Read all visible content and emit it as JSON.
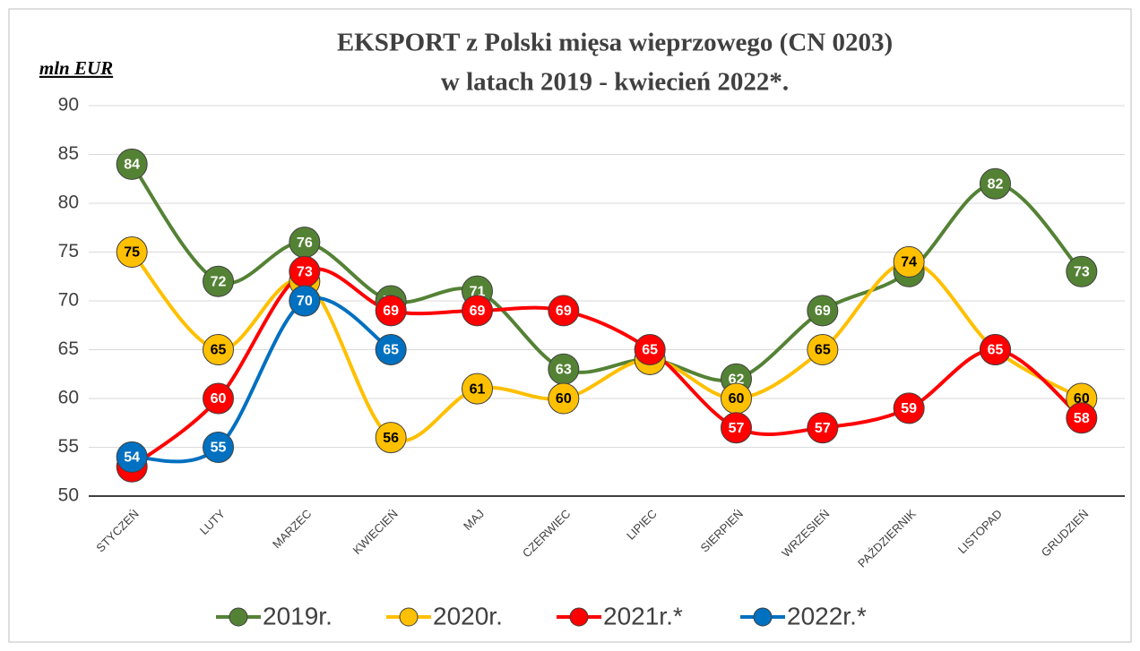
{
  "chart_data": {
    "type": "line",
    "title": "EKSPORT z Polski mięsa wieprzowego (CN 0203)",
    "subtitle": "w latach 2019 - kwiecień 2022*.",
    "y_label": "mln EUR",
    "categories": [
      "STYCZEŃ",
      "LUTY",
      "MARZEC",
      "KWIECIEŃ",
      "MAJ",
      "CZERWIEC",
      "LIPIEC",
      "SIERPIEŃ",
      "WRZESIEŃ",
      "PAŹDZIERNIK",
      "LISTOPAD",
      "GRUDZIEŃ"
    ],
    "series": [
      {
        "name": "2019r.",
        "color": "#548235",
        "label_color": "#ffffff",
        "values": [
          84,
          72,
          76,
          70,
          71,
          63,
          64,
          62,
          69,
          73,
          82,
          73
        ]
      },
      {
        "name": "2020r.",
        "color": "#ffc000",
        "label_color": "#000000",
        "values": [
          75,
          65,
          72,
          56,
          61,
          60,
          64,
          60,
          65,
          74,
          65,
          60
        ]
      },
      {
        "name": "2021r.*",
        "color": "#ff0000",
        "label_color": "#ffffff",
        "values": [
          53,
          60,
          73,
          69,
          69,
          69,
          65,
          57,
          57,
          59,
          65,
          58
        ]
      },
      {
        "name": "2022r.*",
        "color": "#0070c0",
        "label_color": "#ffffff",
        "values": [
          54,
          55,
          70,
          65,
          null,
          null,
          null,
          null,
          null,
          null,
          null,
          null
        ]
      }
    ],
    "ylim": [
      50,
      90
    ],
    "yticks": [
      50,
      55,
      60,
      65,
      70,
      75,
      80,
      85,
      90
    ],
    "grid": true,
    "legend": "bottom"
  }
}
